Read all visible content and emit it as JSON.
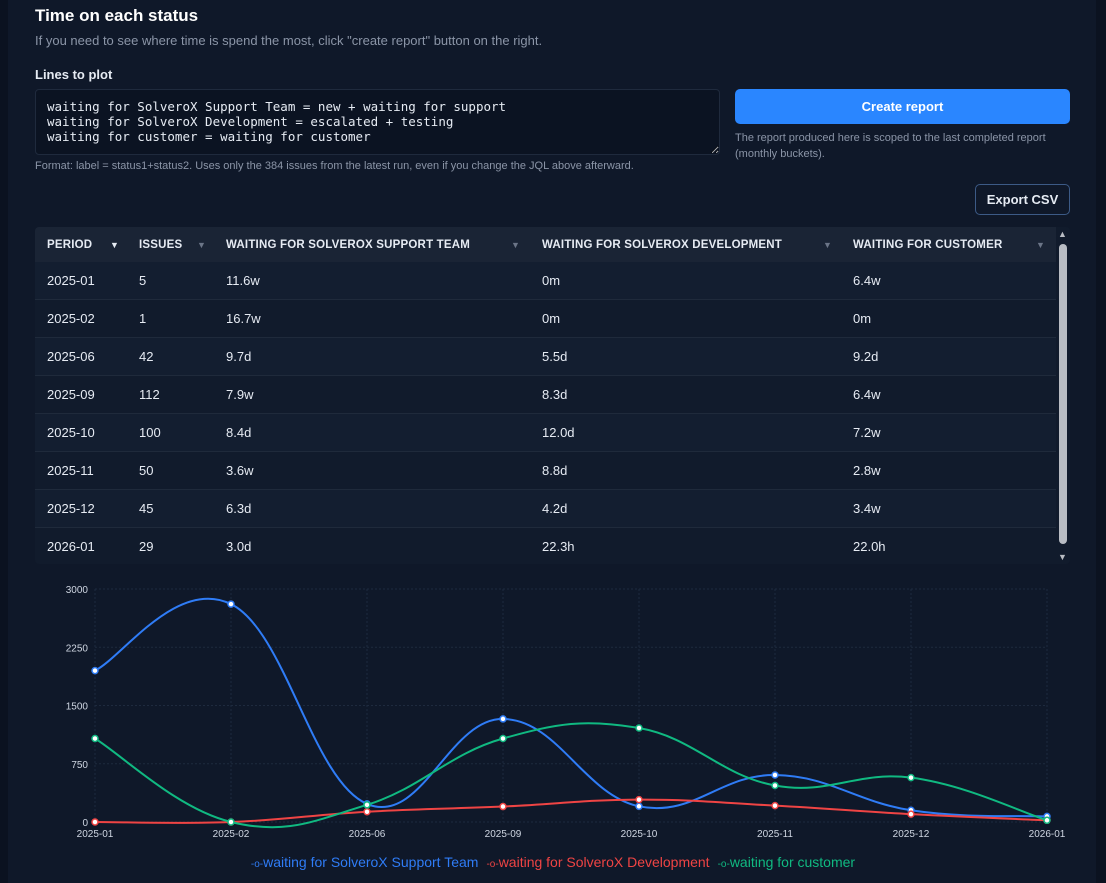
{
  "header": {
    "title": "Time on each status",
    "subtitle": "If you need to see where time is spend the most, click \"create report\" button on the right."
  },
  "lines": {
    "label": "Lines to plot",
    "value": "waiting for SolveroX Support Team = new + waiting for support\nwaiting for SolveroX Development = escalated + testing\nwaiting for customer = waiting for customer",
    "hint": "Format: label = status1+status2. Uses only the 384 issues from the latest run, even if you change the JQL above afterward."
  },
  "actions": {
    "create_label": "Create report",
    "create_note": "The report produced here is scoped to the last completed report (monthly buckets).",
    "export_label": "Export CSV"
  },
  "table": {
    "columns": [
      "PERIOD",
      "ISSUES",
      "WAITING FOR SOLVEROX SUPPORT TEAM",
      "WAITING FOR SOLVEROX DEVELOPMENT",
      "WAITING FOR CUSTOMER"
    ],
    "rows": [
      [
        "2025-01",
        "5",
        "11.6w",
        "0m",
        "6.4w"
      ],
      [
        "2025-02",
        "1",
        "16.7w",
        "0m",
        "0m"
      ],
      [
        "2025-06",
        "42",
        "9.7d",
        "5.5d",
        "9.2d"
      ],
      [
        "2025-09",
        "112",
        "7.9w",
        "8.3d",
        "6.4w"
      ],
      [
        "2025-10",
        "100",
        "8.4d",
        "12.0d",
        "7.2w"
      ],
      [
        "2025-11",
        "50",
        "3.6w",
        "8.8d",
        "2.8w"
      ],
      [
        "2025-12",
        "45",
        "6.3d",
        "4.2d",
        "3.4w"
      ],
      [
        "2026-01",
        "29",
        "3.0d",
        "22.3h",
        "22.0h"
      ]
    ]
  },
  "chart_data": {
    "type": "line",
    "categories": [
      "2025-01",
      "2025-02",
      "2025-06",
      "2025-09",
      "2025-10",
      "2025-11",
      "2025-12",
      "2026-01"
    ],
    "ylim": [
      0,
      3000
    ],
    "yticks": [
      "0",
      "750",
      "1500",
      "2250",
      "3000"
    ],
    "grid": true,
    "legend": "bottom",
    "smooth": true,
    "series": [
      {
        "name": "waiting for SolveroX Support Team",
        "color": "#2f7cf6",
        "values": [
          1949,
          2806,
          233,
          1327,
          202,
          605,
          151,
          72
        ]
      },
      {
        "name": "waiting for SolveroX Development",
        "color": "#ef4444",
        "values": [
          0,
          0,
          132,
          199,
          288,
          211,
          101,
          22
        ]
      },
      {
        "name": "waiting for customer",
        "color": "#10b981",
        "values": [
          1075,
          0,
          221,
          1075,
          1210,
          470,
          571,
          22
        ]
      }
    ]
  }
}
